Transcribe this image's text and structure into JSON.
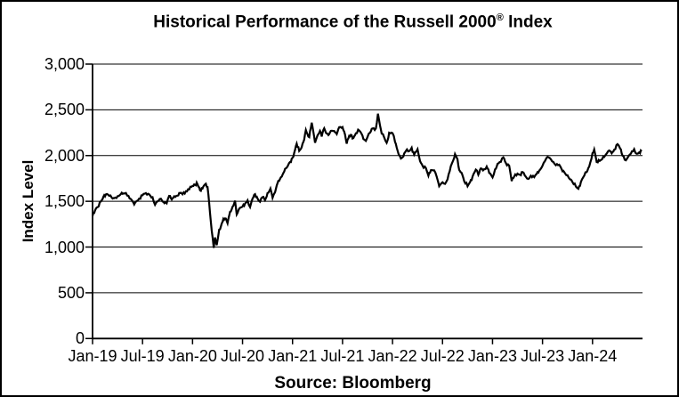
{
  "title": {
    "main": "Historical Performance of the Russell 2000",
    "registered_mark": "®",
    "suffix": " Index"
  },
  "chart_data": {
    "type": "line",
    "title": "Historical Performance of the Russell 2000® Index",
    "xlabel": "",
    "ylabel": "Index Level",
    "source": "Source: Bloomberg",
    "ylim": [
      0,
      3000
    ],
    "ytick_step": 500,
    "ytick_labels": [
      "0",
      "500",
      "1,000",
      "1,500",
      "2,000",
      "2,500",
      "3,000"
    ],
    "xtick_labels": [
      "Jan-19",
      "Jul-19",
      "Jan-20",
      "Jul-20",
      "Jan-21",
      "Jul-21",
      "Jan-22",
      "Jul-22",
      "Jan-23",
      "Jul-23",
      "Jan-24"
    ],
    "x_months_per_tick": 6,
    "x_total_months": 66,
    "grid": "horizontal",
    "legend": "none",
    "line_color": "#000000",
    "background_color": "#ffffff",
    "border_color": "#000000",
    "series": [
      {
        "name": "Russell 2000 Index Level",
        "x_unit": "months since Jan-2019",
        "points": [
          [
            0,
            1340
          ],
          [
            0.3,
            1400
          ],
          [
            0.6,
            1435
          ],
          [
            1,
            1500
          ],
          [
            1.3,
            1550
          ],
          [
            1.6,
            1575
          ],
          [
            2,
            1560
          ],
          [
            2.3,
            1540
          ],
          [
            2.6,
            1535
          ],
          [
            3,
            1555
          ],
          [
            3.3,
            1570
          ],
          [
            3.6,
            1582
          ],
          [
            4,
            1591
          ],
          [
            4.3,
            1560
          ],
          [
            4.6,
            1525
          ],
          [
            5,
            1465
          ],
          [
            5.3,
            1502
          ],
          [
            5.6,
            1530
          ],
          [
            6,
            1567
          ],
          [
            6.4,
            1590
          ],
          [
            6.8,
            1575
          ],
          [
            7.2,
            1545
          ],
          [
            7.5,
            1462
          ],
          [
            7.8,
            1500
          ],
          [
            8.2,
            1528
          ],
          [
            8.5,
            1495
          ],
          [
            8.9,
            1478
          ],
          [
            9.2,
            1560
          ],
          [
            9.5,
            1520
          ],
          [
            9.8,
            1555
          ],
          [
            10.2,
            1562
          ],
          [
            10.5,
            1590
          ],
          [
            10.8,
            1576
          ],
          [
            11.2,
            1610
          ],
          [
            11.6,
            1630
          ],
          [
            12,
            1668
          ],
          [
            12.3,
            1680
          ],
          [
            12.5,
            1705
          ],
          [
            12.8,
            1650
          ],
          [
            13,
            1614
          ],
          [
            13.3,
            1662
          ],
          [
            13.6,
            1692
          ],
          [
            13.8,
            1656
          ],
          [
            14,
            1476
          ],
          [
            14.3,
            1180
          ],
          [
            14.55,
            991
          ],
          [
            14.7,
            1105
          ],
          [
            14.9,
            1020
          ],
          [
            15.2,
            1190
          ],
          [
            15.5,
            1255
          ],
          [
            15.7,
            1310
          ],
          [
            16,
            1311
          ],
          [
            16.2,
            1260
          ],
          [
            16.5,
            1385
          ],
          [
            16.8,
            1440
          ],
          [
            17.1,
            1507
          ],
          [
            17.3,
            1356
          ],
          [
            17.6,
            1420
          ],
          [
            18,
            1441
          ],
          [
            18.3,
            1475
          ],
          [
            18.6,
            1510
          ],
          [
            18.9,
            1436
          ],
          [
            19.2,
            1530
          ],
          [
            19.5,
            1578
          ],
          [
            19.8,
            1531
          ],
          [
            20.1,
            1495
          ],
          [
            20.4,
            1545
          ],
          [
            20.7,
            1512
          ],
          [
            21,
            1590
          ],
          [
            21.35,
            1640
          ],
          [
            21.6,
            1538
          ],
          [
            21.9,
            1600
          ],
          [
            22.2,
            1700
          ],
          [
            22.5,
            1745
          ],
          [
            22.8,
            1790
          ],
          [
            23.1,
            1855
          ],
          [
            23.4,
            1880
          ],
          [
            23.7,
            1930
          ],
          [
            24,
            1975
          ],
          [
            24.3,
            2060
          ],
          [
            24.5,
            2130
          ],
          [
            24.8,
            2051
          ],
          [
            25,
            2073
          ],
          [
            25.3,
            2150
          ],
          [
            25.6,
            2280
          ],
          [
            25.8,
            2233
          ],
          [
            26,
            2201
          ],
          [
            26.3,
            2360
          ],
          [
            26.5,
            2260
          ],
          [
            26.7,
            2140
          ],
          [
            27,
            2221
          ],
          [
            27.3,
            2270
          ],
          [
            27.5,
            2208
          ],
          [
            27.8,
            2298
          ],
          [
            28,
            2250
          ],
          [
            28.3,
            2224
          ],
          [
            28.6,
            2270
          ],
          [
            29,
            2269
          ],
          [
            29.3,
            2235
          ],
          [
            29.6,
            2310
          ],
          [
            30,
            2311
          ],
          [
            30.3,
            2230
          ],
          [
            30.5,
            2130
          ],
          [
            30.8,
            2216
          ],
          [
            31,
            2226
          ],
          [
            31.3,
            2190
          ],
          [
            31.6,
            2244
          ],
          [
            32,
            2274
          ],
          [
            32.3,
            2236
          ],
          [
            32.5,
            2182
          ],
          [
            32.8,
            2160
          ],
          [
            33,
            2204
          ],
          [
            33.3,
            2250
          ],
          [
            33.6,
            2296
          ],
          [
            34,
            2297
          ],
          [
            34.25,
            2458
          ],
          [
            34.5,
            2330
          ],
          [
            34.7,
            2240
          ],
          [
            35,
            2199
          ],
          [
            35.3,
            2140
          ],
          [
            35.6,
            2250
          ],
          [
            36,
            2245
          ],
          [
            36.3,
            2150
          ],
          [
            36.6,
            2056
          ],
          [
            37,
            1968
          ],
          [
            37.3,
            1990
          ],
          [
            37.6,
            2050
          ],
          [
            38,
            2048
          ],
          [
            38.3,
            2085
          ],
          [
            38.6,
            2010
          ],
          [
            39,
            2070
          ],
          [
            39.3,
            1940
          ],
          [
            39.6,
            1890
          ],
          [
            40,
            1864
          ],
          [
            40.3,
            1780
          ],
          [
            40.6,
            1840
          ],
          [
            41,
            1838
          ],
          [
            41.3,
            1770
          ],
          [
            41.6,
            1665
          ],
          [
            42,
            1708
          ],
          [
            42.3,
            1690
          ],
          [
            42.6,
            1740
          ],
          [
            43,
            1885
          ],
          [
            43.3,
            1950
          ],
          [
            43.5,
            2016
          ],
          [
            43.8,
            1960
          ],
          [
            44,
            1844
          ],
          [
            44.3,
            1810
          ],
          [
            44.6,
            1720
          ],
          [
            45,
            1665
          ],
          [
            45.3,
            1710
          ],
          [
            45.6,
            1770
          ],
          [
            46,
            1847
          ],
          [
            46.3,
            1790
          ],
          [
            46.6,
            1860
          ],
          [
            47,
            1851
          ],
          [
            47.3,
            1880
          ],
          [
            47.6,
            1810
          ],
          [
            48,
            1761
          ],
          [
            48.3,
            1850
          ],
          [
            48.6,
            1910
          ],
          [
            49,
            1932
          ],
          [
            49.3,
            1980
          ],
          [
            49.6,
            1920
          ],
          [
            50,
            1890
          ],
          [
            50.3,
            1720
          ],
          [
            50.6,
            1770
          ],
          [
            51,
            1802
          ],
          [
            51.3,
            1790
          ],
          [
            51.6,
            1820
          ],
          [
            52,
            1769
          ],
          [
            52.3,
            1745
          ],
          [
            52.6,
            1780
          ],
          [
            53,
            1764
          ],
          [
            53.3,
            1800
          ],
          [
            53.6,
            1835
          ],
          [
            54,
            1888
          ],
          [
            54.3,
            1940
          ],
          [
            54.6,
            1985
          ],
          [
            55,
            1960
          ],
          [
            55.3,
            1930
          ],
          [
            55.6,
            1895
          ],
          [
            56,
            1900
          ],
          [
            56.3,
            1850
          ],
          [
            56.6,
            1820
          ],
          [
            57,
            1785
          ],
          [
            57.3,
            1740
          ],
          [
            57.6,
            1710
          ],
          [
            58,
            1662
          ],
          [
            58.3,
            1637
          ],
          [
            58.6,
            1710
          ],
          [
            59,
            1780
          ],
          [
            59.3,
            1820
          ],
          [
            59.6,
            1880
          ],
          [
            60,
            2027
          ],
          [
            60.2,
            2066
          ],
          [
            60.5,
            1930
          ],
          [
            61,
            1951
          ],
          [
            61.3,
            1990
          ],
          [
            61.6,
            2010
          ],
          [
            62,
            2055
          ],
          [
            62.3,
            2025
          ],
          [
            62.6,
            2065
          ],
          [
            63,
            2125
          ],
          [
            63.3,
            2080
          ],
          [
            63.6,
            2000
          ],
          [
            64,
            1948
          ],
          [
            64.3,
            1990
          ],
          [
            64.6,
            2020
          ],
          [
            65,
            2070
          ],
          [
            65.3,
            2020
          ],
          [
            65.6,
            2035
          ],
          [
            65.9,
            2047
          ]
        ]
      }
    ]
  }
}
